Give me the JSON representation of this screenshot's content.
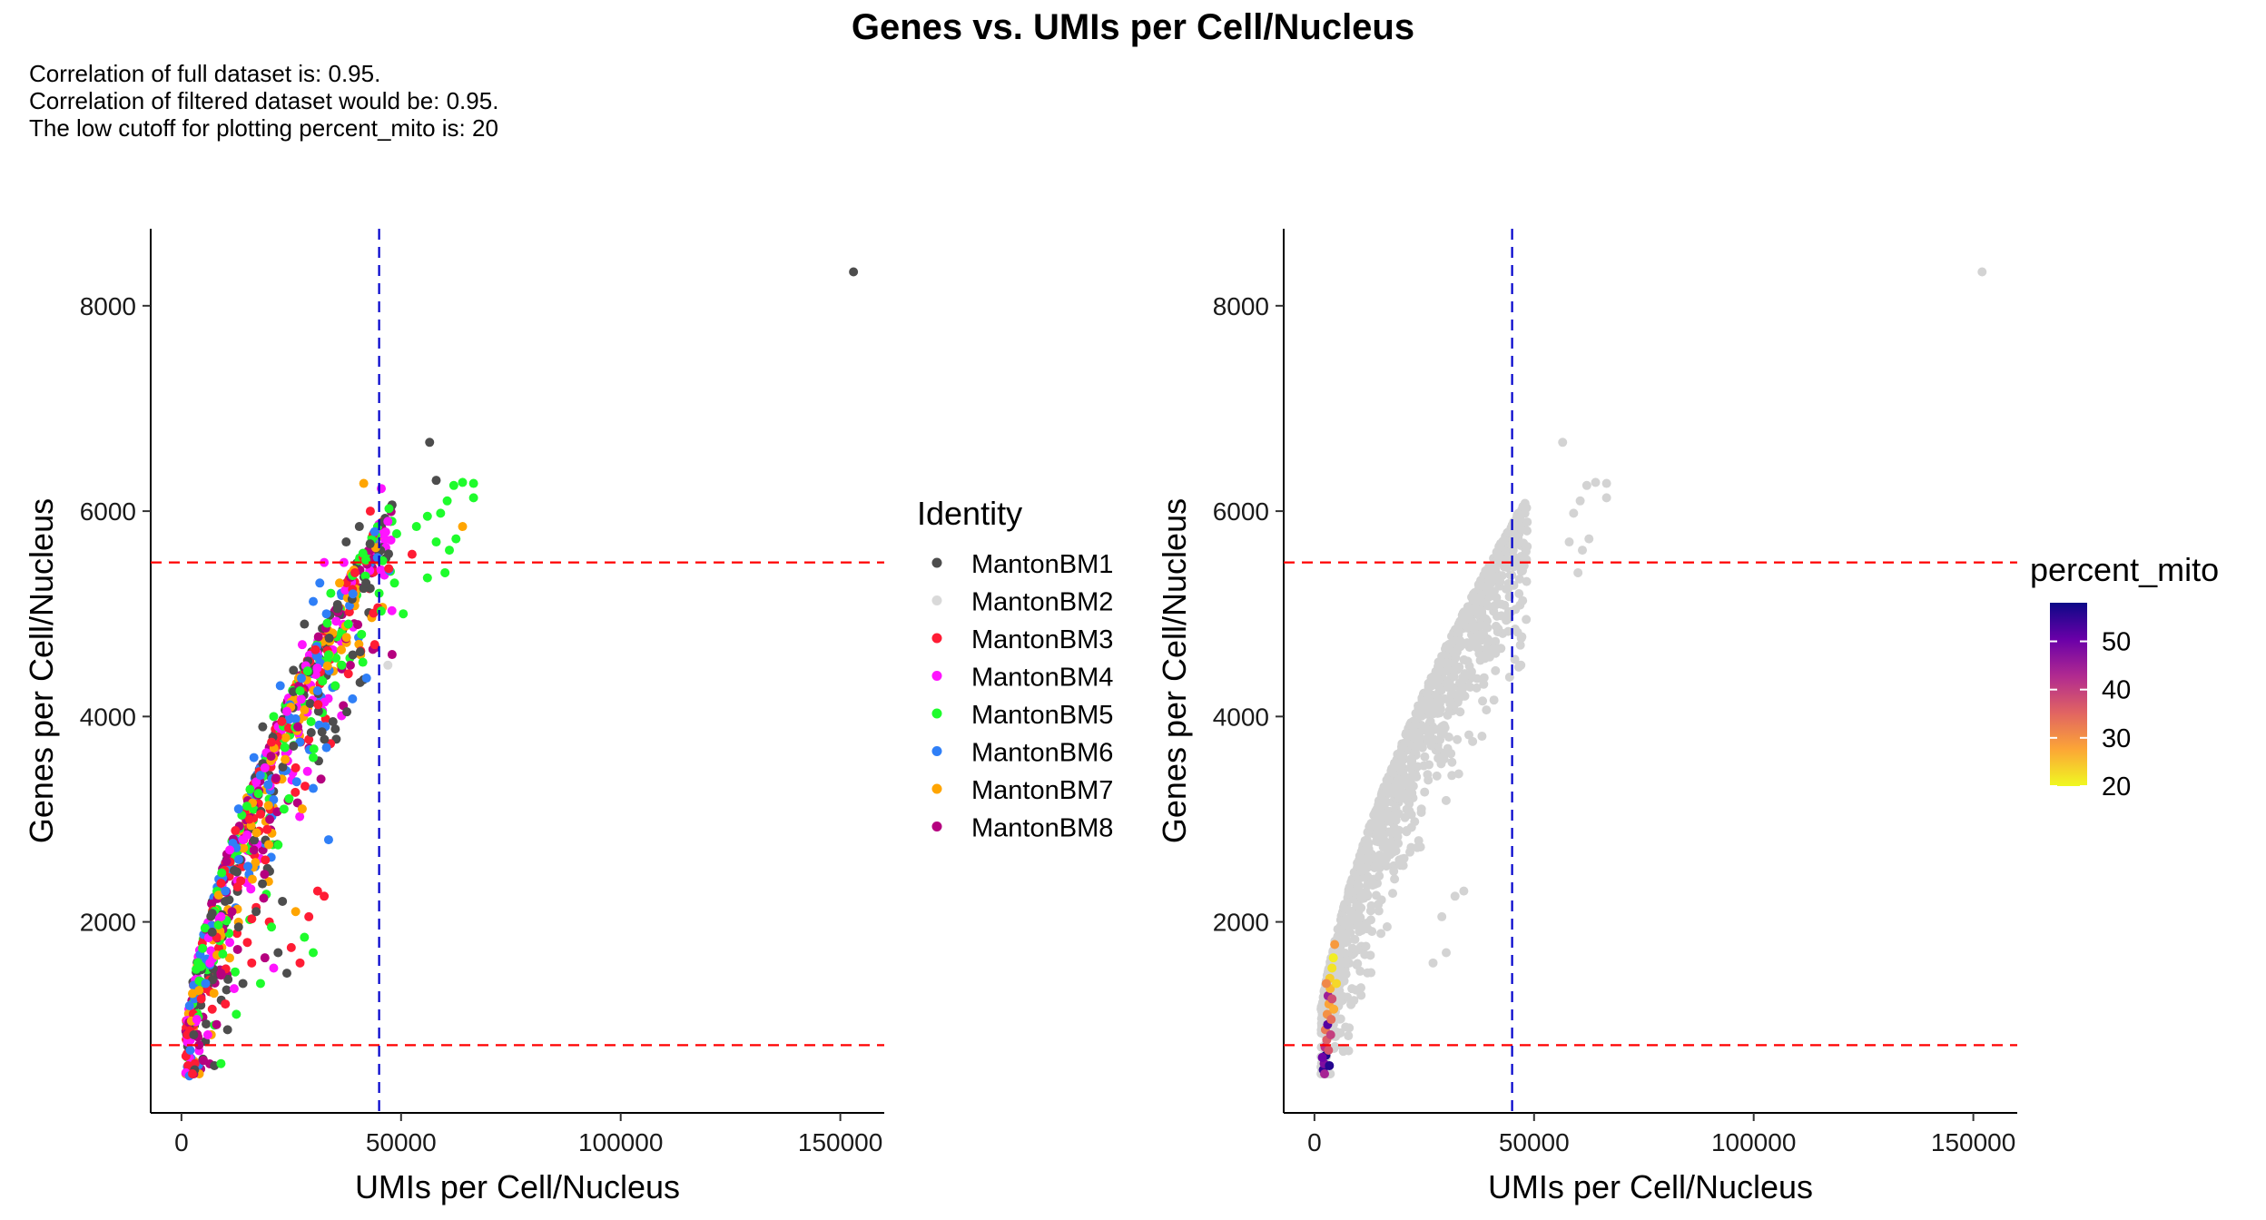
{
  "title": "Genes vs. UMIs per Cell/Nucleus",
  "subtitle": [
    "Correlation of full dataset is: 0.95.",
    "Correlation of filtered dataset would be: 0.95.",
    "The low cutoff for plotting percent_mito is: 20"
  ],
  "chart_data": [
    {
      "type": "scatter",
      "xlabel": "UMIs per Cell/Nucleus",
      "ylabel": "Genes per Cell/Nucleus",
      "xlim": [
        -7000,
        160000
      ],
      "ylim": [
        140,
        8750
      ],
      "xticks": [
        0,
        50000,
        100000,
        150000
      ],
      "yticks": [
        2000,
        4000,
        6000,
        8000
      ],
      "hlines": [
        {
          "y": 800,
          "color": "#ff0000",
          "dash": true
        },
        {
          "y": 5500,
          "color": "#ff0000",
          "dash": true
        }
      ],
      "vlines": [
        {
          "x": 45000,
          "color": "#0000cc",
          "dash": true
        }
      ],
      "legend": {
        "title": "Identity",
        "position": "right",
        "entries": [
          {
            "name": "MantonBM1",
            "color": "#4d4d4d"
          },
          {
            "name": "MantonBM2",
            "color": "#d9d9d9"
          },
          {
            "name": "MantonBM3",
            "color": "#ff1c34"
          },
          {
            "name": "MantonBM4",
            "color": "#ff14ff"
          },
          {
            "name": "MantonBM5",
            "color": "#1efc2c"
          },
          {
            "name": "MantonBM6",
            "color": "#2f7ff7"
          },
          {
            "name": "MantonBM7",
            "color": "#ffa500"
          },
          {
            "name": "MantonBM8",
            "color": "#b5007f"
          }
        ]
      },
      "points": [
        {
          "x": 153000,
          "y": 8330,
          "series": "MantonBM1"
        },
        {
          "x": 56500,
          "y": 6670,
          "series": "MantonBM1"
        },
        {
          "x": 58000,
          "y": 6300,
          "series": "MantonBM1"
        },
        {
          "x": 41500,
          "y": 6270,
          "series": "MantonBM7"
        },
        {
          "x": 45500,
          "y": 6220,
          "series": "MantonBM4"
        },
        {
          "x": 64000,
          "y": 6280,
          "series": "MantonBM5"
        },
        {
          "x": 66500,
          "y": 6270,
          "series": "MantonBM5"
        },
        {
          "x": 66500,
          "y": 6130,
          "series": "MantonBM5"
        },
        {
          "x": 62000,
          "y": 6250,
          "series": "MantonBM5"
        },
        {
          "x": 60500,
          "y": 6100,
          "series": "MantonBM5"
        },
        {
          "x": 59000,
          "y": 5980,
          "series": "MantonBM5"
        },
        {
          "x": 56000,
          "y": 5950,
          "series": "MantonBM5"
        },
        {
          "x": 53500,
          "y": 5850,
          "series": "MantonBM5"
        },
        {
          "x": 58000,
          "y": 5700,
          "series": "MantonBM5"
        },
        {
          "x": 61000,
          "y": 5620,
          "series": "MantonBM5"
        },
        {
          "x": 64000,
          "y": 5850,
          "series": "MantonBM7"
        },
        {
          "x": 62500,
          "y": 5730,
          "series": "MantonBM5"
        },
        {
          "x": 60000,
          "y": 5400,
          "series": "MantonBM5"
        },
        {
          "x": 56000,
          "y": 5350,
          "series": "MantonBM5"
        },
        {
          "x": 52500,
          "y": 5580,
          "series": "MantonBM3"
        },
        {
          "x": 49000,
          "y": 5780,
          "series": "MantonBM5"
        },
        {
          "x": 47000,
          "y": 5900,
          "series": "MantonBM4"
        },
        {
          "x": 44000,
          "y": 5800,
          "series": "MantonBM6"
        },
        {
          "x": 43000,
          "y": 6000,
          "series": "MantonBM3"
        },
        {
          "x": 40500,
          "y": 5850,
          "series": "MantonBM1"
        },
        {
          "x": 37500,
          "y": 5700,
          "series": "MantonBM1"
        },
        {
          "x": 37000,
          "y": 5500,
          "series": "MantonBM4"
        },
        {
          "x": 32500,
          "y": 5500,
          "series": "MantonBM4"
        },
        {
          "x": 31500,
          "y": 5300,
          "series": "MantonBM6"
        },
        {
          "x": 30000,
          "y": 5120,
          "series": "MantonBM6"
        },
        {
          "x": 33000,
          "y": 5000,
          "series": "MantonBM6"
        },
        {
          "x": 35500,
          "y": 5050,
          "series": "MantonBM1"
        },
        {
          "x": 38000,
          "y": 4900,
          "series": "MantonBM5"
        },
        {
          "x": 41000,
          "y": 4800,
          "series": "MantonBM5"
        },
        {
          "x": 44000,
          "y": 4700,
          "series": "MantonBM3"
        },
        {
          "x": 47000,
          "y": 4500,
          "series": "MantonBM2"
        },
        {
          "x": 45000,
          "y": 5200,
          "series": "MantonBM5"
        },
        {
          "x": 48500,
          "y": 5300,
          "series": "MantonBM5"
        },
        {
          "x": 50500,
          "y": 5000,
          "series": "MantonBM5"
        },
        {
          "x": 42000,
          "y": 5300,
          "series": "MantonBM1"
        },
        {
          "x": 39500,
          "y": 5400,
          "series": "MantonBM3"
        },
        {
          "x": 36000,
          "y": 5300,
          "series": "MantonBM7"
        },
        {
          "x": 34000,
          "y": 5200,
          "series": "MantonBM5"
        },
        {
          "x": 28000,
          "y": 4900,
          "series": "MantonBM1"
        },
        {
          "x": 27500,
          "y": 4700,
          "series": "MantonBM4"
        },
        {
          "x": 30500,
          "y": 4650,
          "series": "MantonBM3"
        },
        {
          "x": 33500,
          "y": 4600,
          "series": "MantonBM5"
        },
        {
          "x": 36500,
          "y": 4500,
          "series": "MantonBM5"
        },
        {
          "x": 39000,
          "y": 4600,
          "series": "MantonBM1"
        },
        {
          "x": 35000,
          "y": 4300,
          "series": "MantonBM5"
        },
        {
          "x": 31000,
          "y": 4250,
          "series": "MantonBM6"
        },
        {
          "x": 27000,
          "y": 4250,
          "series": "MantonBM5"
        },
        {
          "x": 25500,
          "y": 4450,
          "series": "MantonBM1"
        },
        {
          "x": 24000,
          "y": 4050,
          "series": "MantonBM4"
        },
        {
          "x": 22500,
          "y": 4300,
          "series": "MantonBM6"
        },
        {
          "x": 21000,
          "y": 4000,
          "series": "MantonBM5"
        },
        {
          "x": 20500,
          "y": 3750,
          "series": "MantonBM3"
        },
        {
          "x": 23500,
          "y": 3700,
          "series": "MantonBM5"
        },
        {
          "x": 26500,
          "y": 3900,
          "series": "MantonBM8"
        },
        {
          "x": 29500,
          "y": 3950,
          "series": "MantonBM5"
        },
        {
          "x": 32000,
          "y": 3850,
          "series": "MantonBM1"
        },
        {
          "x": 34500,
          "y": 3950,
          "series": "MantonBM1"
        },
        {
          "x": 30000,
          "y": 3600,
          "series": "MantonBM5"
        },
        {
          "x": 26000,
          "y": 3500,
          "series": "MantonBM3"
        },
        {
          "x": 19000,
          "y": 3500,
          "series": "MantonBM4"
        },
        {
          "x": 17500,
          "y": 3250,
          "series": "MantonBM5"
        },
        {
          "x": 16500,
          "y": 3600,
          "series": "MantonBM6"
        },
        {
          "x": 18500,
          "y": 3900,
          "series": "MantonBM1"
        },
        {
          "x": 21500,
          "y": 3400,
          "series": "MantonBM8"
        },
        {
          "x": 24500,
          "y": 3200,
          "series": "MantonBM5"
        },
        {
          "x": 27500,
          "y": 3100,
          "series": "MantonBM7"
        },
        {
          "x": 30000,
          "y": 3300,
          "series": "MantonBM6"
        },
        {
          "x": 33500,
          "y": 2800,
          "series": "MantonBM6"
        },
        {
          "x": 15500,
          "y": 3000,
          "series": "MantonBM3"
        },
        {
          "x": 14000,
          "y": 2800,
          "series": "MantonBM4"
        },
        {
          "x": 13000,
          "y": 3100,
          "series": "MantonBM6"
        },
        {
          "x": 16500,
          "y": 2700,
          "series": "MantonBM8"
        },
        {
          "x": 19500,
          "y": 2900,
          "series": "MantonBM3"
        },
        {
          "x": 22000,
          "y": 2750,
          "series": "MantonBM5"
        },
        {
          "x": 12000,
          "y": 2500,
          "series": "MantonBM1"
        },
        {
          "x": 11000,
          "y": 2700,
          "series": "MantonBM4"
        },
        {
          "x": 13500,
          "y": 2400,
          "series": "MantonBM3"
        },
        {
          "x": 10000,
          "y": 2300,
          "series": "MantonBM6"
        },
        {
          "x": 9000,
          "y": 2050,
          "series": "MantonBM4"
        },
        {
          "x": 11500,
          "y": 2100,
          "series": "MantonBM8"
        },
        {
          "x": 8000,
          "y": 1850,
          "series": "MantonBM3"
        },
        {
          "x": 7000,
          "y": 1900,
          "series": "MantonBM1"
        },
        {
          "x": 6500,
          "y": 1600,
          "series": "MantonBM4"
        },
        {
          "x": 5500,
          "y": 1400,
          "series": "MantonBM6"
        },
        {
          "x": 4500,
          "y": 1250,
          "series": "MantonBM3"
        },
        {
          "x": 3500,
          "y": 1050,
          "series": "MantonBM4"
        },
        {
          "x": 2800,
          "y": 900,
          "series": "MantonBM1"
        },
        {
          "x": 2000,
          "y": 750,
          "series": "MantonBM6"
        },
        {
          "x": 1500,
          "y": 600,
          "series": "MantonBM3"
        },
        {
          "x": 1000,
          "y": 530,
          "series": "MantonBM4"
        },
        {
          "x": 3000,
          "y": 560,
          "series": "MantonBM1"
        },
        {
          "x": 5000,
          "y": 650,
          "series": "MantonBM8"
        },
        {
          "x": 7500,
          "y": 600,
          "series": "MantonBM1"
        },
        {
          "x": 9000,
          "y": 620,
          "series": "MantonBM5"
        },
        {
          "x": 17000,
          "y": 2100,
          "series": "MantonBM1"
        },
        {
          "x": 20000,
          "y": 2000,
          "series": "MantonBM3"
        },
        {
          "x": 23000,
          "y": 2200,
          "series": "MantonBM1"
        },
        {
          "x": 26000,
          "y": 2100,
          "series": "MantonBM7"
        },
        {
          "x": 29000,
          "y": 2050,
          "series": "MantonBM3"
        },
        {
          "x": 31000,
          "y": 2300,
          "series": "MantonBM3"
        },
        {
          "x": 32500,
          "y": 2250,
          "series": "MantonBM3"
        },
        {
          "x": 28000,
          "y": 1850,
          "series": "MantonBM5"
        },
        {
          "x": 25000,
          "y": 1750,
          "series": "MantonBM3"
        },
        {
          "x": 22000,
          "y": 1700,
          "series": "MantonBM1"
        },
        {
          "x": 19000,
          "y": 1650,
          "series": "MantonBM8"
        },
        {
          "x": 16000,
          "y": 1600,
          "series": "MantonBM3"
        },
        {
          "x": 14000,
          "y": 1400,
          "series": "MantonBM1"
        },
        {
          "x": 12000,
          "y": 1350,
          "series": "MantonBM4"
        },
        {
          "x": 10000,
          "y": 1200,
          "series": "MantonBM3"
        },
        {
          "x": 9000,
          "y": 1500,
          "series": "MantonBM8"
        },
        {
          "x": 11000,
          "y": 1800,
          "series": "MantonBM4"
        },
        {
          "x": 13000,
          "y": 1950,
          "series": "MantonBM1"
        },
        {
          "x": 15000,
          "y": 1800,
          "series": "MantonBM3"
        },
        {
          "x": 18000,
          "y": 1400,
          "series": "MantonBM5"
        },
        {
          "x": 21000,
          "y": 1550,
          "series": "MantonBM4"
        },
        {
          "x": 24000,
          "y": 1500,
          "series": "MantonBM1"
        },
        {
          "x": 27000,
          "y": 1600,
          "series": "MantonBM3"
        },
        {
          "x": 30000,
          "y": 1700,
          "series": "MantonBM5"
        },
        {
          "x": 20500,
          "y": 1950,
          "series": "MantonBM5"
        },
        {
          "x": 8000,
          "y": 1000,
          "series": "MantonBM8"
        },
        {
          "x": 7000,
          "y": 1150,
          "series": "MantonBM3"
        },
        {
          "x": 6000,
          "y": 900,
          "series": "MantonBM4"
        },
        {
          "x": 10500,
          "y": 950,
          "series": "MantonBM1"
        },
        {
          "x": 12500,
          "y": 1100,
          "series": "MantonBM5"
        },
        {
          "x": 4000,
          "y": 800,
          "series": "MantonBM8"
        },
        {
          "x": 1800,
          "y": 500,
          "series": "MantonBM6"
        },
        {
          "x": 2500,
          "y": 520,
          "series": "MantonBM3"
        }
      ]
    },
    {
      "type": "scatter",
      "xlabel": "UMIs per Cell/Nucleus",
      "ylabel": "Genes per Cell/Nucleus",
      "xlim": [
        -7000,
        160000
      ],
      "ylim": [
        140,
        8750
      ],
      "xticks": [
        0,
        50000,
        100000,
        150000
      ],
      "yticks": [
        2000,
        4000,
        6000,
        8000
      ],
      "hlines": [
        {
          "y": 800,
          "color": "#ff0000",
          "dash": true
        },
        {
          "y": 5500,
          "color": "#ff0000",
          "dash": true
        }
      ],
      "vlines": [
        {
          "x": 45000,
          "color": "#0000cc",
          "dash": true
        }
      ],
      "base_color": "#d3d3d3",
      "colorbar": {
        "title": "percent_mito",
        "range": [
          20,
          58
        ],
        "ticks": [
          20,
          30,
          40,
          50
        ],
        "colors": [
          "#f0f921",
          "#fca636",
          "#e16462",
          "#b12a90",
          "#6a00a8",
          "#0d0887"
        ]
      },
      "points": [
        {
          "x": 2000,
          "y": 560,
          "mito": 55
        },
        {
          "x": 2200,
          "y": 620,
          "mito": 48
        },
        {
          "x": 2600,
          "y": 700,
          "mito": 57
        },
        {
          "x": 2400,
          "y": 780,
          "mito": 42
        },
        {
          "x": 2800,
          "y": 850,
          "mito": 36
        },
        {
          "x": 2500,
          "y": 950,
          "mito": 33
        },
        {
          "x": 3000,
          "y": 1000,
          "mito": 52
        },
        {
          "x": 2900,
          "y": 1100,
          "mito": 30
        },
        {
          "x": 3300,
          "y": 1200,
          "mito": 28
        },
        {
          "x": 3100,
          "y": 1280,
          "mito": 45
        },
        {
          "x": 3600,
          "y": 1350,
          "mito": 26
        },
        {
          "x": 3500,
          "y": 1450,
          "mito": 24
        },
        {
          "x": 4000,
          "y": 1550,
          "mito": 22
        },
        {
          "x": 4300,
          "y": 1650,
          "mito": 21
        },
        {
          "x": 4600,
          "y": 1780,
          "mito": 29
        },
        {
          "x": 4000,
          "y": 1250,
          "mito": 38
        },
        {
          "x": 3700,
          "y": 900,
          "mito": 40
        },
        {
          "x": 1800,
          "y": 680,
          "mito": 50
        },
        {
          "x": 2300,
          "y": 520,
          "mito": 44
        },
        {
          "x": 3400,
          "y": 600,
          "mito": 56
        },
        {
          "x": 3800,
          "y": 1050,
          "mito": 34
        },
        {
          "x": 5000,
          "y": 1400,
          "mito": 23
        },
        {
          "x": 4400,
          "y": 1150,
          "mito": 27
        },
        {
          "x": 2700,
          "y": 1400,
          "mito": 31
        },
        {
          "x": 3200,
          "y": 750,
          "mito": 37
        }
      ]
    }
  ]
}
